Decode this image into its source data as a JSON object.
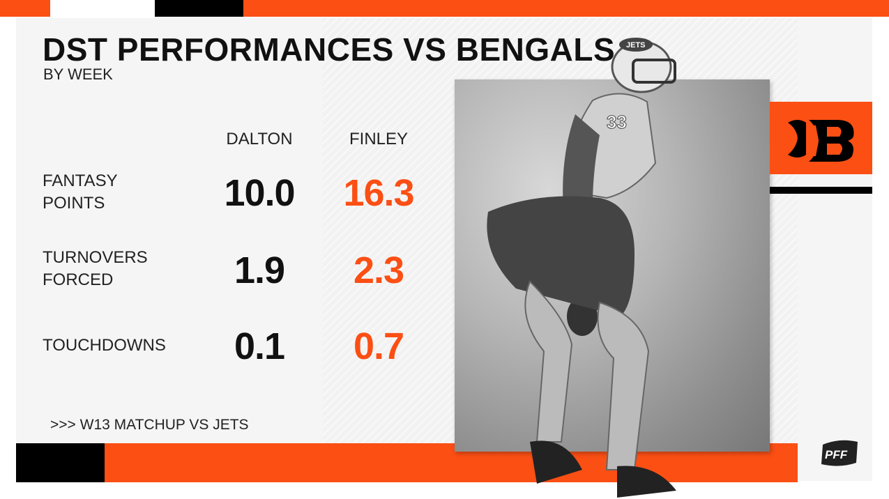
{
  "header": {
    "title": "DST PERFORMANCES VS BENGALS",
    "subtitle": "BY WEEK"
  },
  "columns": [
    "DALTON",
    "FINLEY"
  ],
  "rows": [
    {
      "label_line1": "FANTASY",
      "label_line2": "POINTS",
      "dalton": "10.0",
      "finley": "16.3"
    },
    {
      "label_line1": "TURNOVERS",
      "label_line2": "FORCED",
      "dalton": "1.9",
      "finley": "2.3"
    },
    {
      "label_line1": "TOUCHDOWNS",
      "label_line2": "",
      "dalton": "0.1",
      "finley": "0.7"
    }
  ],
  "footnote": ">>> W13 MATCHUP VS JETS",
  "logos": {
    "team": "bengals-logo-icon",
    "brand": "pff-logo-icon",
    "helmet_text": "JETS",
    "jersey_number": "33"
  },
  "colors": {
    "accent": "#fb4f14",
    "dark": "#000000",
    "background": "#f5f5f5"
  }
}
